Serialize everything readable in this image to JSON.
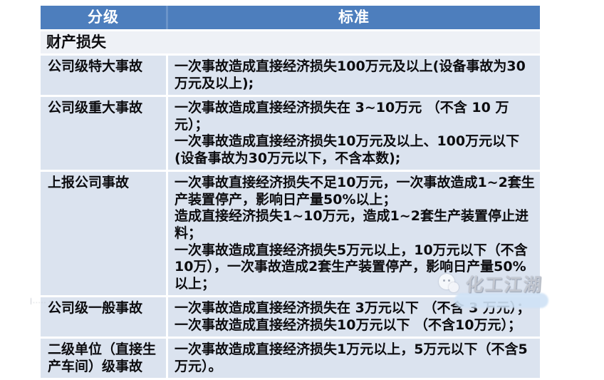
{
  "table": {
    "header": {
      "level": "分级",
      "standard": "标准"
    },
    "section": "财产损失",
    "rows": [
      {
        "level": "公司级特大事故",
        "criteria": [
          "一次事故造成直接经济损失100万元及以上(设备事故为30万元及以上);"
        ]
      },
      {
        "level": "公司级重大事故",
        "criteria": [
          "一次事故造成直接经济损失在 3~10万元 （不含 10 万元）；",
          "一次事故造成直接经济损失10万元及以上、100万元以下(设备事故为30万元以下，不含本数);"
        ]
      },
      {
        "level": "上报公司事故",
        "criteria": [
          "一次事故直接经济损失不足10万元，一次事故造成1~2套生产装置停产，影响日产量50%以上；",
          "造成直接经济损失1~10万元，造成1~2套生产装置停止进料；",
          "一次事故造成直接经济损失5万元以上，10万元以下（不含10万），一次事故造成2套生产装置停产，影响日产量50%以上；"
        ]
      },
      {
        "level": "公司级一般事故",
        "criteria": [
          "一次事故造成直接经济损失在 3万元以下 （不含 3 万元）；",
          "一次事故造成直接经济损失10万元以下 （不含10万元）；"
        ]
      },
      {
        "level": "二级单位（直接生产车间）级事故",
        "criteria": [
          "一次事故造成直接经济损失1万元以上，5万元以下（不含5万元）。"
        ]
      }
    ]
  },
  "watermark": {
    "text": "化工江湖"
  },
  "colors": {
    "header_bg": "#4d7ebd",
    "row_bg": "#dbe3ef",
    "section_bg": "#eef1f6",
    "text": "#0c0c0f",
    "watermark_blob": "#cfe2f6"
  }
}
